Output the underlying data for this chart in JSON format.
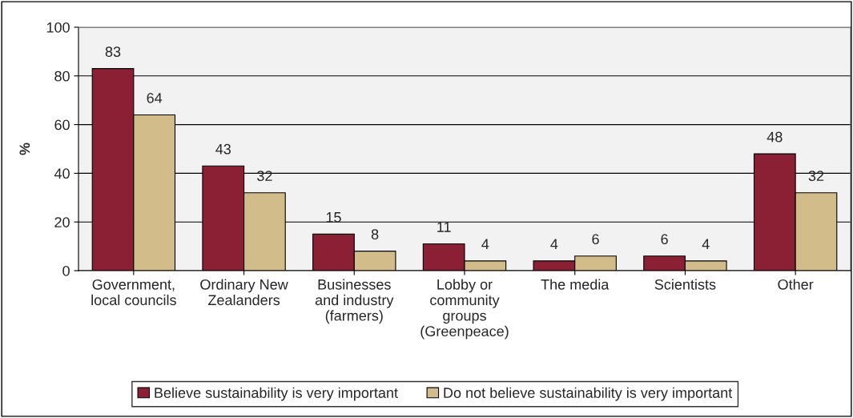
{
  "chart_data": {
    "type": "bar",
    "ylabel": "%",
    "categories": [
      "Government,\nlocal councils",
      "Ordinary New\nZealanders",
      "Businesses\nand industry\n(farmers)",
      "Lobby or\ncommunity\ngroups\n(Greenpeace)",
      "The media",
      "Scientists",
      "Other"
    ],
    "series": [
      {
        "name": "Believe sustainability is very important",
        "color": "#8b2035",
        "values": [
          83,
          43,
          15,
          11,
          4,
          6,
          48
        ]
      },
      {
        "name": "Do not believe sustainability is very important",
        "color": "#d2bd8a",
        "values": [
          64,
          32,
          8,
          4,
          6,
          4,
          32
        ]
      }
    ],
    "ylim": [
      0,
      100
    ],
    "yticks": [
      0,
      20,
      40,
      60,
      80,
      100
    ],
    "grid": "y",
    "legend": "bottom",
    "data_labels": true
  }
}
